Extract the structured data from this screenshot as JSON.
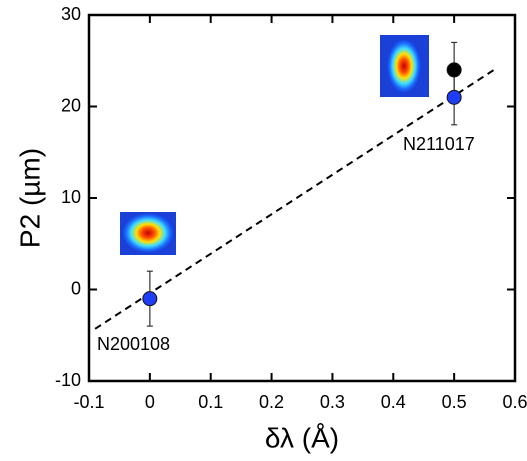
{
  "chart_data": {
    "type": "scatter",
    "xlabel": "δλ (Å)",
    "ylabel": "P2 (µm)",
    "xlim": [
      -0.1,
      0.6
    ],
    "xticks": [
      -0.1,
      0,
      0.1,
      0.2,
      0.3,
      0.4,
      0.5,
      0.6
    ],
    "ylim": [
      -10,
      30
    ],
    "yticks": [
      -10,
      0,
      10,
      20,
      30
    ],
    "series": [
      {
        "color": "#1f3df5",
        "x": [
          0,
          0.5
        ],
        "values": [
          -1,
          21
        ],
        "errors": [
          3,
          3
        ]
      },
      {
        "color": "#000000",
        "x": [
          0.5
        ],
        "values": [
          24
        ],
        "errors": [
          3
        ]
      }
    ],
    "fit": {
      "x": [
        -0.09,
        0.57
      ],
      "values": [
        -4.3,
        24.2
      ]
    },
    "annotations": [
      "N200108",
      "N211017"
    ]
  }
}
